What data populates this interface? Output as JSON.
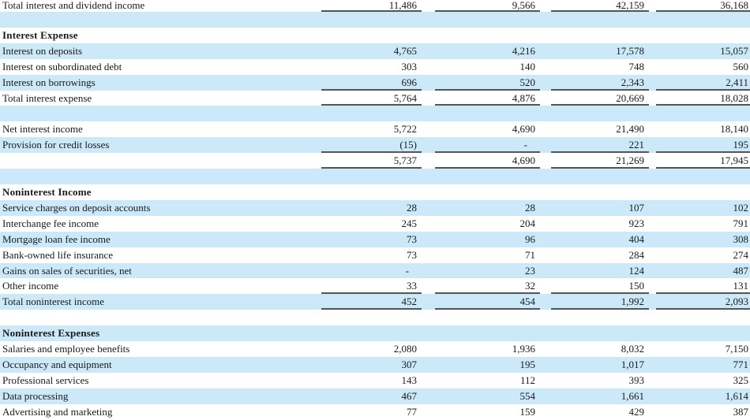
{
  "document": {
    "kind": "income-statement-table",
    "stripe_color": "#cbe9f8",
    "border_color": "#555555",
    "text_color": "#1a1a1a"
  },
  "table": {
    "columns": 4,
    "rows": [
      {
        "type": "data",
        "stripe": false,
        "border_bottom": true,
        "label": "Total interest and dividend income",
        "values": [
          "11,486",
          "9,566",
          "42,159",
          "36,168"
        ]
      },
      {
        "type": "blank",
        "stripe": true,
        "border_bottom": false
      },
      {
        "type": "section",
        "stripe": false,
        "border_bottom": false,
        "label": "Interest Expense"
      },
      {
        "type": "data",
        "stripe": true,
        "border_bottom": false,
        "label": "Interest on deposits",
        "values": [
          "4,765",
          "4,216",
          "17,578",
          "15,057"
        ]
      },
      {
        "type": "data",
        "stripe": false,
        "border_bottom": false,
        "label": "Interest on subordinated debt",
        "values": [
          "303",
          "140",
          "748",
          "560"
        ]
      },
      {
        "type": "data",
        "stripe": true,
        "border_bottom": true,
        "label": "Interest on borrowings",
        "values": [
          "696",
          "520",
          "2,343",
          "2,411"
        ]
      },
      {
        "type": "data",
        "stripe": false,
        "border_bottom": true,
        "label": "Total interest expense",
        "values": [
          "5,764",
          "4,876",
          "20,669",
          "18,028"
        ]
      },
      {
        "type": "blank",
        "stripe": true,
        "border_bottom": false
      },
      {
        "type": "data",
        "stripe": false,
        "border_bottom": false,
        "label": "Net interest income",
        "values": [
          "5,722",
          "4,690",
          "21,490",
          "18,140"
        ]
      },
      {
        "type": "data",
        "stripe": true,
        "border_bottom": true,
        "label": "Provision for credit losses",
        "values": [
          "(15)",
          "-",
          "221",
          "195"
        ]
      },
      {
        "type": "data",
        "stripe": false,
        "border_bottom": true,
        "label": "",
        "values": [
          "5,737",
          "4,690",
          "21,269",
          "17,945"
        ]
      },
      {
        "type": "blank",
        "stripe": true,
        "border_bottom": false
      },
      {
        "type": "section",
        "stripe": false,
        "border_bottom": false,
        "label": "Noninterest Income"
      },
      {
        "type": "data",
        "stripe": true,
        "border_bottom": false,
        "label": "Service charges on deposit accounts",
        "values": [
          "28",
          "28",
          "107",
          "102"
        ]
      },
      {
        "type": "data",
        "stripe": false,
        "border_bottom": false,
        "label": "Interchange fee income",
        "values": [
          "245",
          "204",
          "923",
          "791"
        ]
      },
      {
        "type": "data",
        "stripe": true,
        "border_bottom": false,
        "label": "Mortgage loan fee income",
        "values": [
          "73",
          "96",
          "404",
          "308"
        ]
      },
      {
        "type": "data",
        "stripe": false,
        "border_bottom": false,
        "label": "Bank-owned life insurance",
        "values": [
          "73",
          "71",
          "284",
          "274"
        ]
      },
      {
        "type": "data",
        "stripe": true,
        "border_bottom": false,
        "label": "Gains on sales of securities, net",
        "values": [
          "-",
          "23",
          "124",
          "487"
        ]
      },
      {
        "type": "data",
        "stripe": false,
        "border_bottom": true,
        "label": "Other income",
        "values": [
          "33",
          "32",
          "150",
          "131"
        ]
      },
      {
        "type": "data",
        "stripe": true,
        "border_bottom": true,
        "label": "Total noninterest income",
        "values": [
          "452",
          "454",
          "1,992",
          "2,093"
        ]
      },
      {
        "type": "blank",
        "stripe": false,
        "border_bottom": false
      },
      {
        "type": "section",
        "stripe": true,
        "border_bottom": false,
        "label": "Noninterest Expenses"
      },
      {
        "type": "data",
        "stripe": false,
        "border_bottom": false,
        "label": "Salaries and employee benefits",
        "values": [
          "2,080",
          "1,936",
          "8,032",
          "7,150"
        ]
      },
      {
        "type": "data",
        "stripe": true,
        "border_bottom": false,
        "label": "Occupancy and equipment",
        "values": [
          "307",
          "195",
          "1,017",
          "771"
        ]
      },
      {
        "type": "data",
        "stripe": false,
        "border_bottom": false,
        "label": "Professional services",
        "values": [
          "143",
          "112",
          "393",
          "325"
        ]
      },
      {
        "type": "data",
        "stripe": true,
        "border_bottom": false,
        "label": "Data processing",
        "values": [
          "467",
          "554",
          "1,661",
          "1,614"
        ]
      },
      {
        "type": "data",
        "stripe": false,
        "border_bottom": false,
        "label": "Advertising and marketing",
        "values": [
          "77",
          "159",
          "429",
          "387"
        ]
      }
    ]
  }
}
